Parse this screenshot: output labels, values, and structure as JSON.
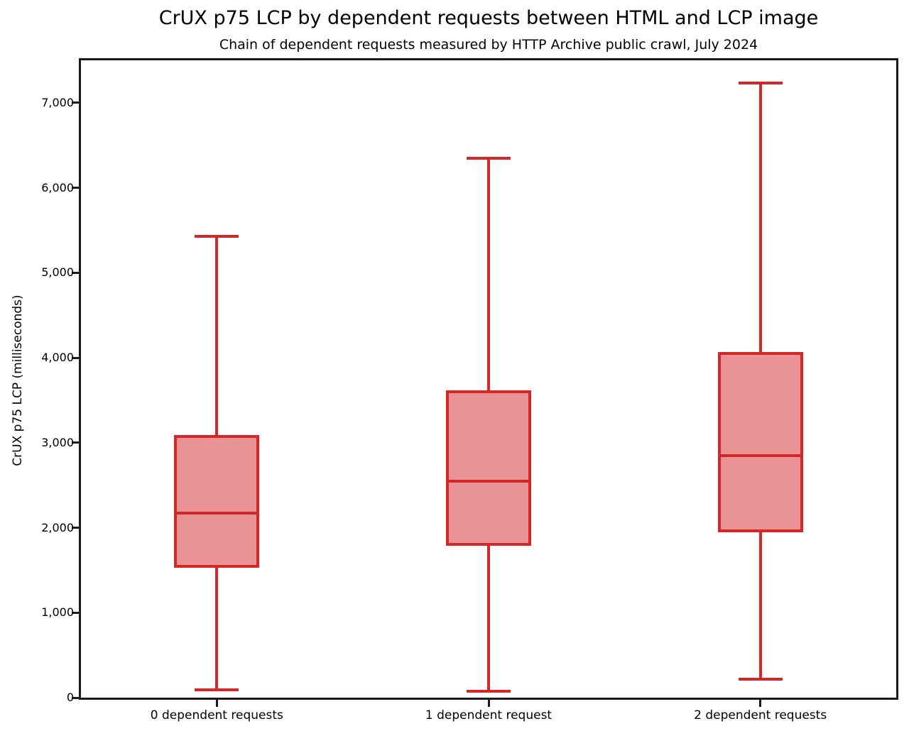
{
  "title": "CrUX p75 LCP by dependent requests between HTML and LCP image",
  "subtitle": "Chain of dependent requests measured by HTTP Archive public crawl, July 2024",
  "chart_data": {
    "type": "boxplot",
    "title": "CrUX p75 LCP by dependent requests between HTML and LCP image",
    "subtitle": "Chain of dependent requests measured by HTTP Archive public crawl, July 2024",
    "xlabel": "",
    "ylabel": "CrUX p75 LCP (milliseconds)",
    "ylim": [
      0,
      7500
    ],
    "yticks": [
      0,
      1000,
      2000,
      3000,
      4000,
      5000,
      6000,
      7000
    ],
    "ytick_labels": [
      "0",
      "1,000",
      "2,000",
      "3,000",
      "4,000",
      "5,000",
      "6,000",
      "7,000"
    ],
    "grid": false,
    "legend": false,
    "categories": [
      "0 dependent requests",
      "1 dependent request",
      "2 dependent requests"
    ],
    "series": [
      {
        "name": "0 dependent requests",
        "min": 95,
        "q1": 1530,
        "median": 2170,
        "q3": 3090,
        "max": 5425
      },
      {
        "name": "1 dependent request",
        "min": 75,
        "q1": 1790,
        "median": 2550,
        "q3": 3620,
        "max": 6350
      },
      {
        "name": "2 dependent requests",
        "min": 215,
        "q1": 1950,
        "median": 2850,
        "q3": 4070,
        "max": 7230
      }
    ],
    "colors": {
      "box_edge": "#d62728",
      "box_fill": "#ea9394",
      "axis": "#1a1a1a",
      "text": "#000000"
    }
  }
}
